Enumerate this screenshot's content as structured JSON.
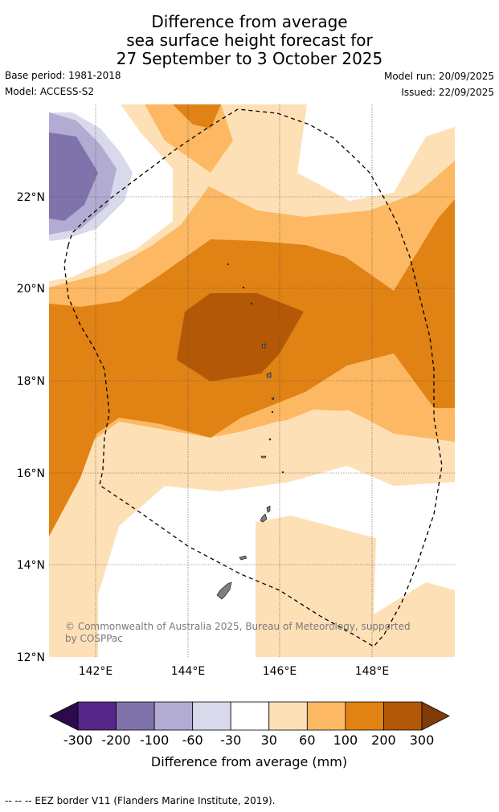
{
  "title": {
    "line1": "Difference from average",
    "line2": "sea surface height forecast for",
    "line3": "27 September to 3 October 2025"
  },
  "meta": {
    "base_period": "Base period: 1981-2018",
    "model": "Model: ACCESS-S2",
    "model_run": "Model run: 20/09/2025",
    "issued": "Issued: 22/09/2025"
  },
  "map": {
    "lat_labels": [
      "22°N",
      "20°N",
      "18°N",
      "16°N",
      "14°N",
      "12°N"
    ],
    "lon_labels": [
      "142°E",
      "144°E",
      "146°E",
      "148°E"
    ],
    "copyright": "© Commonwealth of Australia 2025, Bureau of Meteorology, supported",
    "copyright_line2": "by COSPPac"
  },
  "colorbar": {
    "label": "Difference from average (mm)",
    "ticks": [
      "-300",
      "-200",
      "-100",
      "-60",
      "-30",
      "30",
      "60",
      "100",
      "200",
      "300"
    ],
    "colors": [
      "#2d0a4e",
      "#542788",
      "#8073ac",
      "#b2abd2",
      "#d8daeb",
      "#ffffff",
      "#fee0b6",
      "#fdb863",
      "#e08214",
      "#b35806",
      "#7f3b08"
    ]
  },
  "footer": {
    "legend_text": "--  --  -- EEZ border V11 (Flanders Marine Institute, 2019)."
  }
}
